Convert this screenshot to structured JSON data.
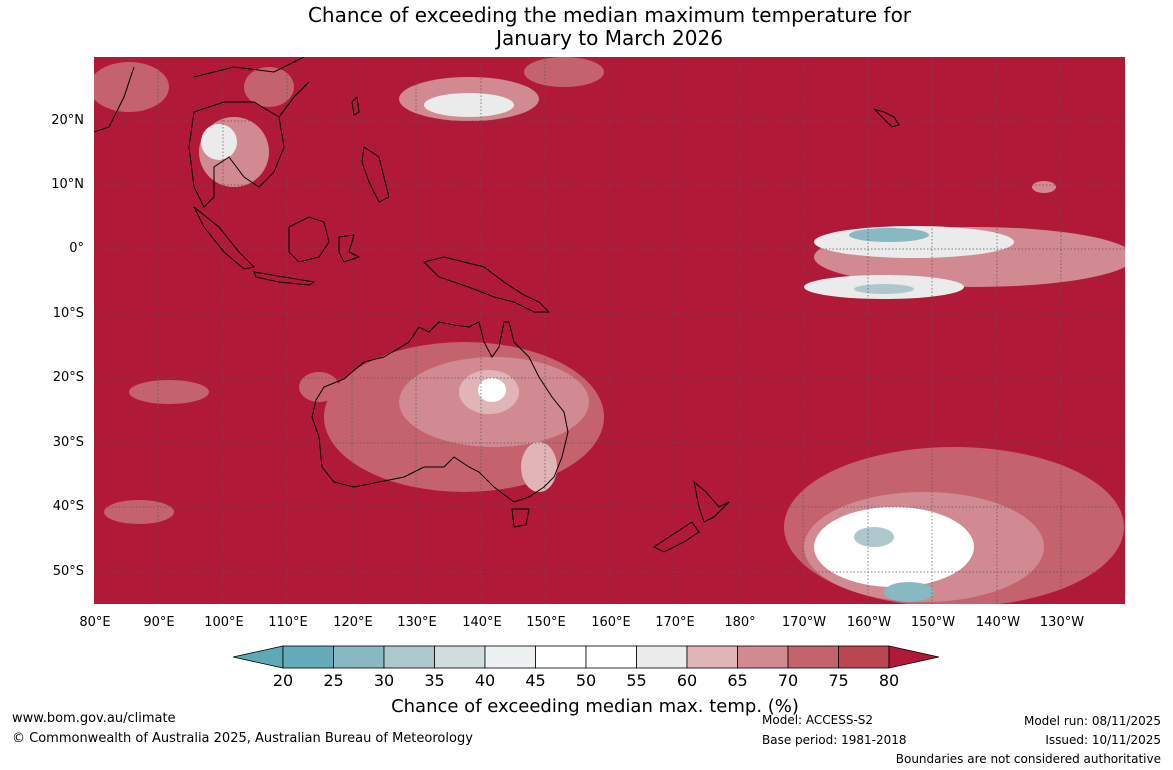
{
  "title_line1": "Chance of exceeding the median maximum temperature for",
  "title_line2": "January to March 2026",
  "y_labels": [
    "20°N",
    "10°N",
    "0°",
    "10°S",
    "20°S",
    "30°S",
    "40°S",
    "50°S"
  ],
  "x_labels": [
    "80°E",
    "90°E",
    "100°E",
    "110°E",
    "120°E",
    "130°E",
    "140°E",
    "150°E",
    "160°E",
    "170°E",
    "180°",
    "170°W",
    "160°W",
    "150°W",
    "140°W",
    "130°W"
  ],
  "colorbar": {
    "ticks": [
      "20",
      "25",
      "30",
      "35",
      "40",
      "45",
      "50",
      "55",
      "60",
      "65",
      "70",
      "75",
      "80"
    ],
    "colors": [
      "#5fa8b5",
      "#66abb8",
      "#88b9c2",
      "#acc8cd",
      "#d1dcdc",
      "#edf1f2",
      "#ffffff",
      "#ffffff",
      "#ebebeb",
      "#e1b4b8",
      "#d18a91",
      "#c4636e",
      "#bb4550",
      "#b01a38"
    ],
    "title": "Chance of exceeding median max. temp. (%)"
  },
  "colors": {
    "high": "#b01a38",
    "mid": "#c4636e",
    "light": "#e1b4b8",
    "neutral": "#ffffff",
    "low": "#66abb8"
  },
  "footer": {
    "website": "www.bom.gov.au/climate",
    "copyright": "© Commonwealth of Australia 2025, Australian Bureau of Meteorology",
    "model": "Model: ACCESS-S2",
    "base_period": "Base period: 1981-2018",
    "model_run": "Model run: 08/11/2025",
    "issued": "Issued: 10/11/2025",
    "disclaimer": "Boundaries are not considered authoritative"
  }
}
